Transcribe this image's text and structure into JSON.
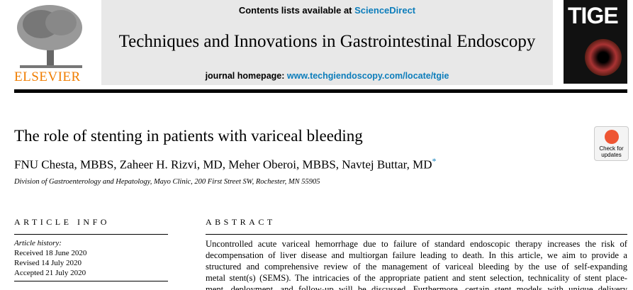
{
  "header": {
    "publisher": "ELSEVIER",
    "contents_prefix": "Contents lists available at",
    "sciencedirect": "ScienceDirect",
    "journal_title": "Techniques and Innovations in Gastrointestinal Endoscopy",
    "homepage_prefix": "journal homepage:",
    "homepage_url": "www.techgiendoscopy.com/locate/tgie",
    "cover_title": "TIGE",
    "check_badge": [
      "Check for",
      "updates"
    ]
  },
  "article": {
    "title": "The role of stenting in patients with variceal bleeding",
    "authors": "FNU Chesta, MBBS, Zaheer H. Rizvi, MD, Meher Oberoi, MBBS, Navtej Buttar, MD",
    "corresponding_mark": "*",
    "affiliation": "Division of Gastroenterology and Hepatology, Mayo Clinic, 200 First Street SW, Rochester, MN 55905"
  },
  "article_info": {
    "heading": "ARTICLE INFO",
    "history_label": "Article history:",
    "dates": [
      "Received 18 June 2020",
      "Revised 14 July 2020",
      "Accepted 21 July 2020"
    ]
  },
  "abstract": {
    "heading": "ABSTRACT",
    "lines": [
      "Uncontrolled acute variceal hemorrhage due to failure of standard endoscopic therapy increases the risk of",
      "decompensation of liver disease and multiorgan failure leading to death. In this article, we aim to provide a",
      "structured and comprehensive review of the management of variceal bleeding by the use of self-expanding",
      "metal stent(s) (SEMS). The intricacies of the appropriate patient and stent selection, technicality of stent place-",
      "ment, deployment, and follow-up will be discussed. Furthermore, certain stent models with unique delivery"
    ]
  }
}
